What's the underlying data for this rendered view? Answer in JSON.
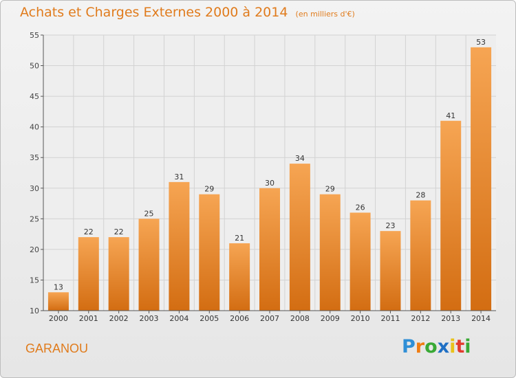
{
  "title": "Achats et Charges Externes 2000 à 2014",
  "unit": "(en milliers d'€)",
  "town": "GARANOU",
  "brand": {
    "letters": [
      "P",
      "r",
      "o",
      "x",
      "i",
      "t",
      "i"
    ],
    "colors": [
      "#2f8fd6",
      "#f07d12",
      "#39a935",
      "#1f6fc4",
      "#e9c21b",
      "#e23b2e",
      "#39a935"
    ]
  },
  "colors": {
    "title": "#e07b1c",
    "bar_top": "#f6a553",
    "bar_bottom": "#d36d12",
    "axis": "#555555",
    "grid": "#d2d2d2",
    "background": "#ececec"
  },
  "chart_data": {
    "type": "bar",
    "categories": [
      "2000",
      "2001",
      "2002",
      "2003",
      "2004",
      "2005",
      "2006",
      "2007",
      "2008",
      "2009",
      "2010",
      "2011",
      "2012",
      "2013",
      "2014"
    ],
    "values": [
      13,
      22,
      22,
      25,
      31,
      29,
      21,
      30,
      34,
      29,
      26,
      23,
      28,
      41,
      53
    ],
    "title": "Achats et Charges Externes 2000 à 2014",
    "ylim": [
      10,
      55
    ],
    "yticks": [
      10,
      15,
      20,
      25,
      30,
      35,
      40,
      45,
      50,
      55
    ],
    "grid": true,
    "data_labels": true
  }
}
